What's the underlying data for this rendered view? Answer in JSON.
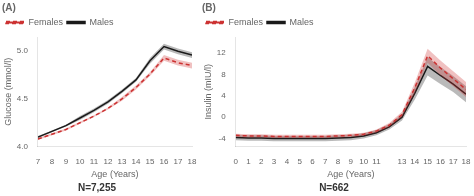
{
  "chart_data": [
    {
      "type": "line",
      "title": "(A)",
      "annotations": [
        "N=7,255"
      ],
      "x_label": "Age (Years)",
      "y_label": "Glucose (mmol/l)",
      "x": [
        7,
        8,
        9,
        10,
        11,
        12,
        13,
        14,
        15,
        16,
        17,
        18
      ],
      "xlim": [
        7,
        18
      ],
      "xticks": [
        7,
        8,
        9,
        10,
        11,
        12,
        13,
        14,
        15,
        16,
        17,
        18
      ],
      "ylim": [
        4.0,
        5.15
      ],
      "yticks": [
        {
          "value": 4.0,
          "label": "4.0"
        },
        4.5,
        {
          "value": 5.0,
          "label": "5.0"
        }
      ],
      "grid": false,
      "legend": "upper left",
      "series": [
        {
          "name": "Females",
          "color": "#cc3333",
          "line_style": "dashed",
          "values": [
            4.08,
            4.13,
            4.18,
            4.25,
            4.32,
            4.4,
            4.5,
            4.62,
            4.76,
            4.93,
            4.88,
            4.85
          ],
          "ci_low": [
            4.07,
            4.12,
            4.17,
            4.24,
            4.31,
            4.39,
            4.48,
            4.6,
            4.74,
            4.9,
            4.85,
            4.82
          ],
          "ci_high": [
            4.09,
            4.14,
            4.19,
            4.26,
            4.33,
            4.41,
            4.52,
            4.64,
            4.78,
            4.96,
            4.91,
            4.88
          ]
        },
        {
          "name": "Males",
          "color": "#1a1a1a",
          "line_style": "solid",
          "values": [
            4.1,
            4.16,
            4.22,
            4.3,
            4.38,
            4.47,
            4.58,
            4.7,
            4.9,
            5.05,
            5.0,
            4.96
          ],
          "ci_low": [
            4.09,
            4.15,
            4.21,
            4.28,
            4.36,
            4.45,
            4.56,
            4.68,
            4.87,
            5.02,
            4.97,
            4.93
          ],
          "ci_high": [
            4.11,
            4.17,
            4.23,
            4.32,
            4.4,
            4.49,
            4.6,
            4.72,
            4.93,
            5.08,
            5.03,
            4.99
          ]
        }
      ]
    },
    {
      "type": "line",
      "title": "(B)",
      "annotations": [
        "N=662"
      ],
      "x_label": "Age (Years)",
      "y_label": "Insulin (mIU/l)",
      "x": [
        0,
        1,
        2,
        3,
        4,
        5,
        6,
        7,
        8,
        9,
        10,
        11,
        12,
        13,
        14,
        15,
        16,
        17,
        18
      ],
      "xlim": [
        0,
        18
      ],
      "xticks": [
        0,
        1,
        2,
        3,
        4,
        5,
        6,
        7,
        8,
        9,
        10,
        11,
        13,
        14,
        15,
        16,
        17,
        18
      ],
      "ylim": [
        -5.5,
        15
      ],
      "yticks": [
        -4,
        0,
        4,
        8,
        12
      ],
      "grid": false,
      "legend": "upper left",
      "series": [
        {
          "name": "Females",
          "color": "#cc3333",
          "line_style": "dashed",
          "values": [
            -3.4,
            -3.5,
            -3.5,
            -3.6,
            -3.6,
            -3.6,
            -3.6,
            -3.6,
            -3.5,
            -3.4,
            -3.2,
            -2.6,
            -1.5,
            0.5,
            5.5,
            11.5,
            9.2,
            7.2,
            5.2
          ],
          "ci_low": [
            -3.7,
            -3.8,
            -3.8,
            -3.9,
            -3.9,
            -3.9,
            -3.9,
            -3.9,
            -3.8,
            -3.7,
            -3.5,
            -2.9,
            -1.9,
            0.0,
            4.5,
            10.2,
            7.8,
            5.8,
            3.8
          ],
          "ci_high": [
            -3.1,
            -3.2,
            -3.2,
            -3.3,
            -3.3,
            -3.3,
            -3.3,
            -3.3,
            -3.2,
            -3.1,
            -2.9,
            -2.3,
            -1.1,
            1.0,
            6.5,
            12.8,
            10.6,
            8.6,
            6.6
          ]
        },
        {
          "name": "Males",
          "color": "#1a1a1a",
          "line_style": "solid",
          "values": [
            -3.8,
            -3.9,
            -3.9,
            -4.0,
            -4.0,
            -4.0,
            -4.0,
            -4.0,
            -3.9,
            -3.8,
            -3.5,
            -2.9,
            -1.8,
            0.0,
            4.5,
            9.5,
            7.8,
            6.2,
            4.3
          ],
          "ci_low": [
            -4.3,
            -4.4,
            -4.4,
            -4.5,
            -4.5,
            -4.5,
            -4.5,
            -4.5,
            -4.4,
            -4.3,
            -4.0,
            -3.4,
            -2.3,
            -0.6,
            3.3,
            7.8,
            6.2,
            4.7,
            2.8
          ],
          "ci_high": [
            -3.3,
            -3.4,
            -3.4,
            -3.5,
            -3.5,
            -3.5,
            -3.5,
            -3.5,
            -3.4,
            -3.3,
            -3.0,
            -2.4,
            -1.3,
            0.6,
            5.7,
            11.2,
            9.4,
            7.7,
            5.8
          ]
        }
      ]
    }
  ]
}
